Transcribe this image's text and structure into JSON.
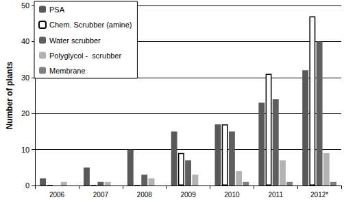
{
  "chart_data": {
    "type": "bar",
    "y_label": "Number of plants",
    "categories": [
      "2006",
      "2007",
      "2008",
      "2009",
      "2010",
      "2011",
      "2012*"
    ],
    "series": [
      {
        "name": "PSA",
        "color": "#595959",
        "values": [
          2,
          5,
          10,
          15,
          17,
          23,
          32
        ]
      },
      {
        "name": "Chem. Scrubber (amine)",
        "color": "#ffffff",
        "values": [
          0,
          0,
          0,
          9,
          17,
          31,
          47
        ]
      },
      {
        "name": "Water scrubber",
        "color": "#5f5f5f",
        "values": [
          0,
          1,
          3,
          7,
          15,
          24,
          40
        ]
      },
      {
        "name": "Polyglycol -  scrubber",
        "color": "#b3b3b3",
        "values": [
          1,
          1,
          2,
          3,
          4,
          7,
          9
        ]
      },
      {
        "name": "Membrane",
        "color": "#808080",
        "values": [
          0,
          0,
          0,
          0,
          1,
          1,
          1
        ]
      }
    ],
    "ylim": [
      0,
      50
    ],
    "yticks": [
      0,
      10,
      20,
      30,
      40,
      50
    ],
    "grid": true,
    "legend": "top-left"
  }
}
